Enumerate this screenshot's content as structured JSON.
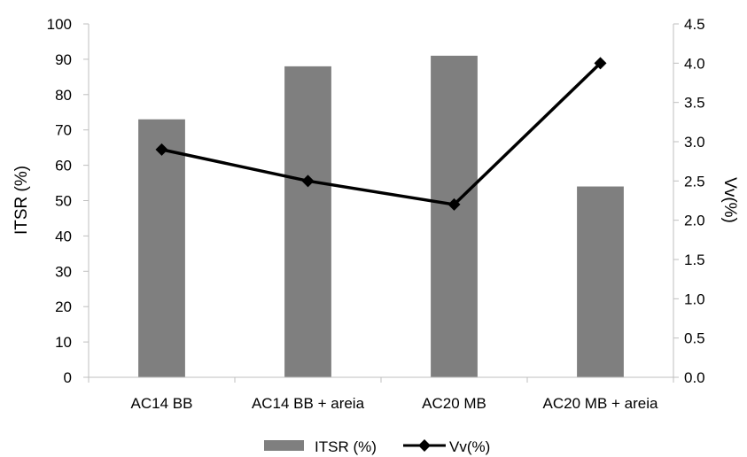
{
  "chart_data": {
    "type": "bar",
    "categories": [
      "AC14 BB",
      "AC14 BB + areia",
      "AC20 MB",
      "AC20 MB + areia"
    ],
    "series": [
      {
        "name": "ITSR (%)",
        "type": "bar",
        "axis": "left",
        "values": [
          73,
          88,
          91,
          54
        ],
        "color": "#7f7f7f"
      },
      {
        "name": "Vv(%)",
        "type": "line",
        "axis": "right",
        "marker": "diamond",
        "values": [
          2.9,
          2.5,
          2.2,
          4.0
        ],
        "color": "#000000"
      }
    ],
    "y_left": {
      "label": "ITSR (%)",
      "range": [
        0,
        100
      ],
      "ticks": [
        "0",
        "10",
        "20",
        "30",
        "40",
        "50",
        "60",
        "70",
        "80",
        "90",
        "100"
      ]
    },
    "y_right": {
      "label": "Vv(%)",
      "range": [
        0,
        4.5
      ],
      "ticks": [
        "0.0",
        "0.5",
        "1.0",
        "1.5",
        "2.0",
        "2.5",
        "3.0",
        "3.5",
        "4.0",
        "4.5"
      ]
    },
    "grid": false,
    "legend": "bottom-center"
  }
}
